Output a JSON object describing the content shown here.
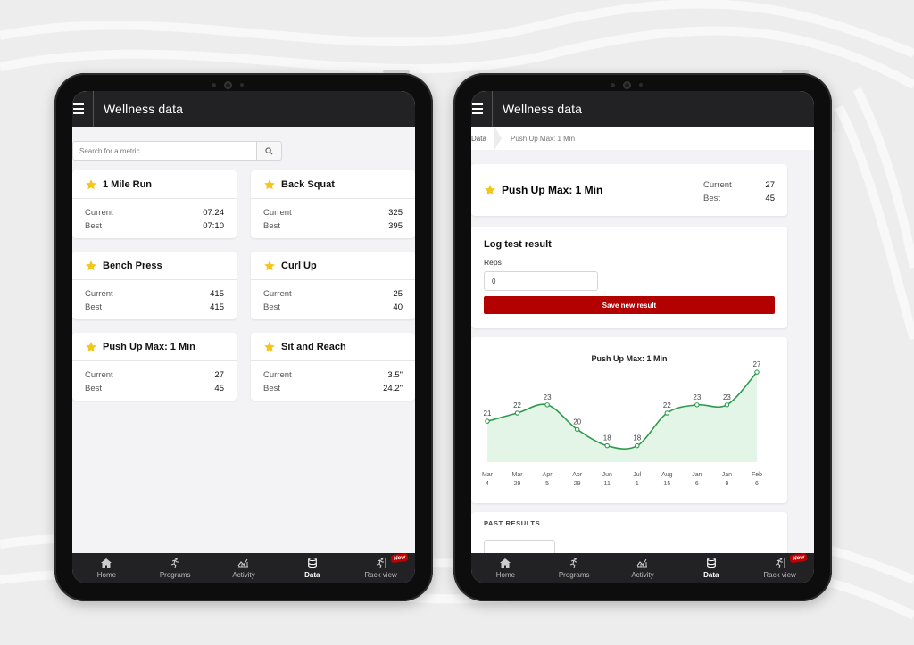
{
  "app": {
    "title": "Wellness data"
  },
  "left": {
    "search": {
      "placeholder": "Search for a metric"
    },
    "labels": {
      "current": "Current",
      "best": "Best"
    },
    "metrics": [
      {
        "name": "1 Mile Run",
        "current": "07:24",
        "best": "07:10"
      },
      {
        "name": "Back Squat",
        "current": "325",
        "best": "395"
      },
      {
        "name": "Bench Press",
        "current": "415",
        "best": "415"
      },
      {
        "name": "Curl Up",
        "current": "25",
        "best": "40"
      },
      {
        "name": "Push Up Max: 1 Min",
        "current": "27",
        "best": "45"
      },
      {
        "name": "Sit and Reach",
        "current": "3.5\"",
        "best": "24.2\""
      }
    ]
  },
  "nav": {
    "items": [
      {
        "label": "Home",
        "icon": "home-icon"
      },
      {
        "label": "Programs",
        "icon": "runner-icon"
      },
      {
        "label": "Activity",
        "icon": "activity-chart-icon"
      },
      {
        "label": "Data",
        "icon": "database-icon",
        "active": true
      },
      {
        "label": "Rack view",
        "icon": "rack-runner-icon",
        "badge": "New"
      }
    ]
  },
  "right": {
    "breadcrumb": {
      "root": "Data",
      "current": "Push Up Max: 1 Min"
    },
    "metric": {
      "name": "Push Up Max: 1 Min",
      "current_label": "Current",
      "current": "27",
      "best_label": "Best",
      "best": "45"
    },
    "log": {
      "title": "Log test result",
      "field_label": "Reps",
      "value": "0",
      "save_label": "Save new result"
    },
    "past": {
      "title": "PAST RESULTS"
    }
  },
  "colors": {
    "accent": "#b30000",
    "bar": "#222224",
    "line": "#2e9a4e",
    "area": "#e3f5e6",
    "star": "#f5c518"
  },
  "chart_data": {
    "type": "line",
    "title": "Push Up Max: 1 Min",
    "x": [
      [
        "Mar",
        "4"
      ],
      [
        "Mar",
        "29"
      ],
      [
        "Apr",
        "5"
      ],
      [
        "Apr",
        "29"
      ],
      [
        "Jun",
        "11"
      ],
      [
        "Jul",
        "1"
      ],
      [
        "Aug",
        "15"
      ],
      [
        "Jan",
        "6"
      ],
      [
        "Jan",
        "9"
      ],
      [
        "Feb",
        "6"
      ]
    ],
    "values": [
      21,
      22,
      23,
      20,
      18,
      18,
      22,
      23,
      23,
      27
    ],
    "ylim": [
      16,
      28
    ],
    "grid": false,
    "fill": true
  }
}
